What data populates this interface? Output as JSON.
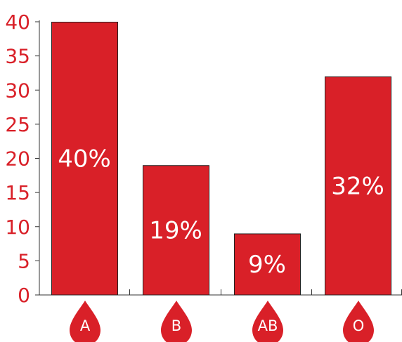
{
  "chart_data": {
    "type": "bar",
    "categories": [
      "A",
      "B",
      "AB",
      "O"
    ],
    "values": [
      40,
      19,
      9,
      32
    ],
    "data_labels": [
      "40%",
      "19%",
      "9%",
      "32%"
    ],
    "yticks": [
      "0",
      "5",
      "10",
      "15",
      "20",
      "25",
      "30",
      "35",
      "40"
    ],
    "ylim": [
      0,
      40
    ],
    "title": "",
    "xlabel": "",
    "ylabel": "",
    "grid": false,
    "category_icon": "blood-drop-icon",
    "colors": {
      "bar": "#d92028",
      "bar_outline": "#222222",
      "tick_text": "#d92028",
      "axis": "#333333",
      "bar_text": "#ffffff"
    }
  }
}
